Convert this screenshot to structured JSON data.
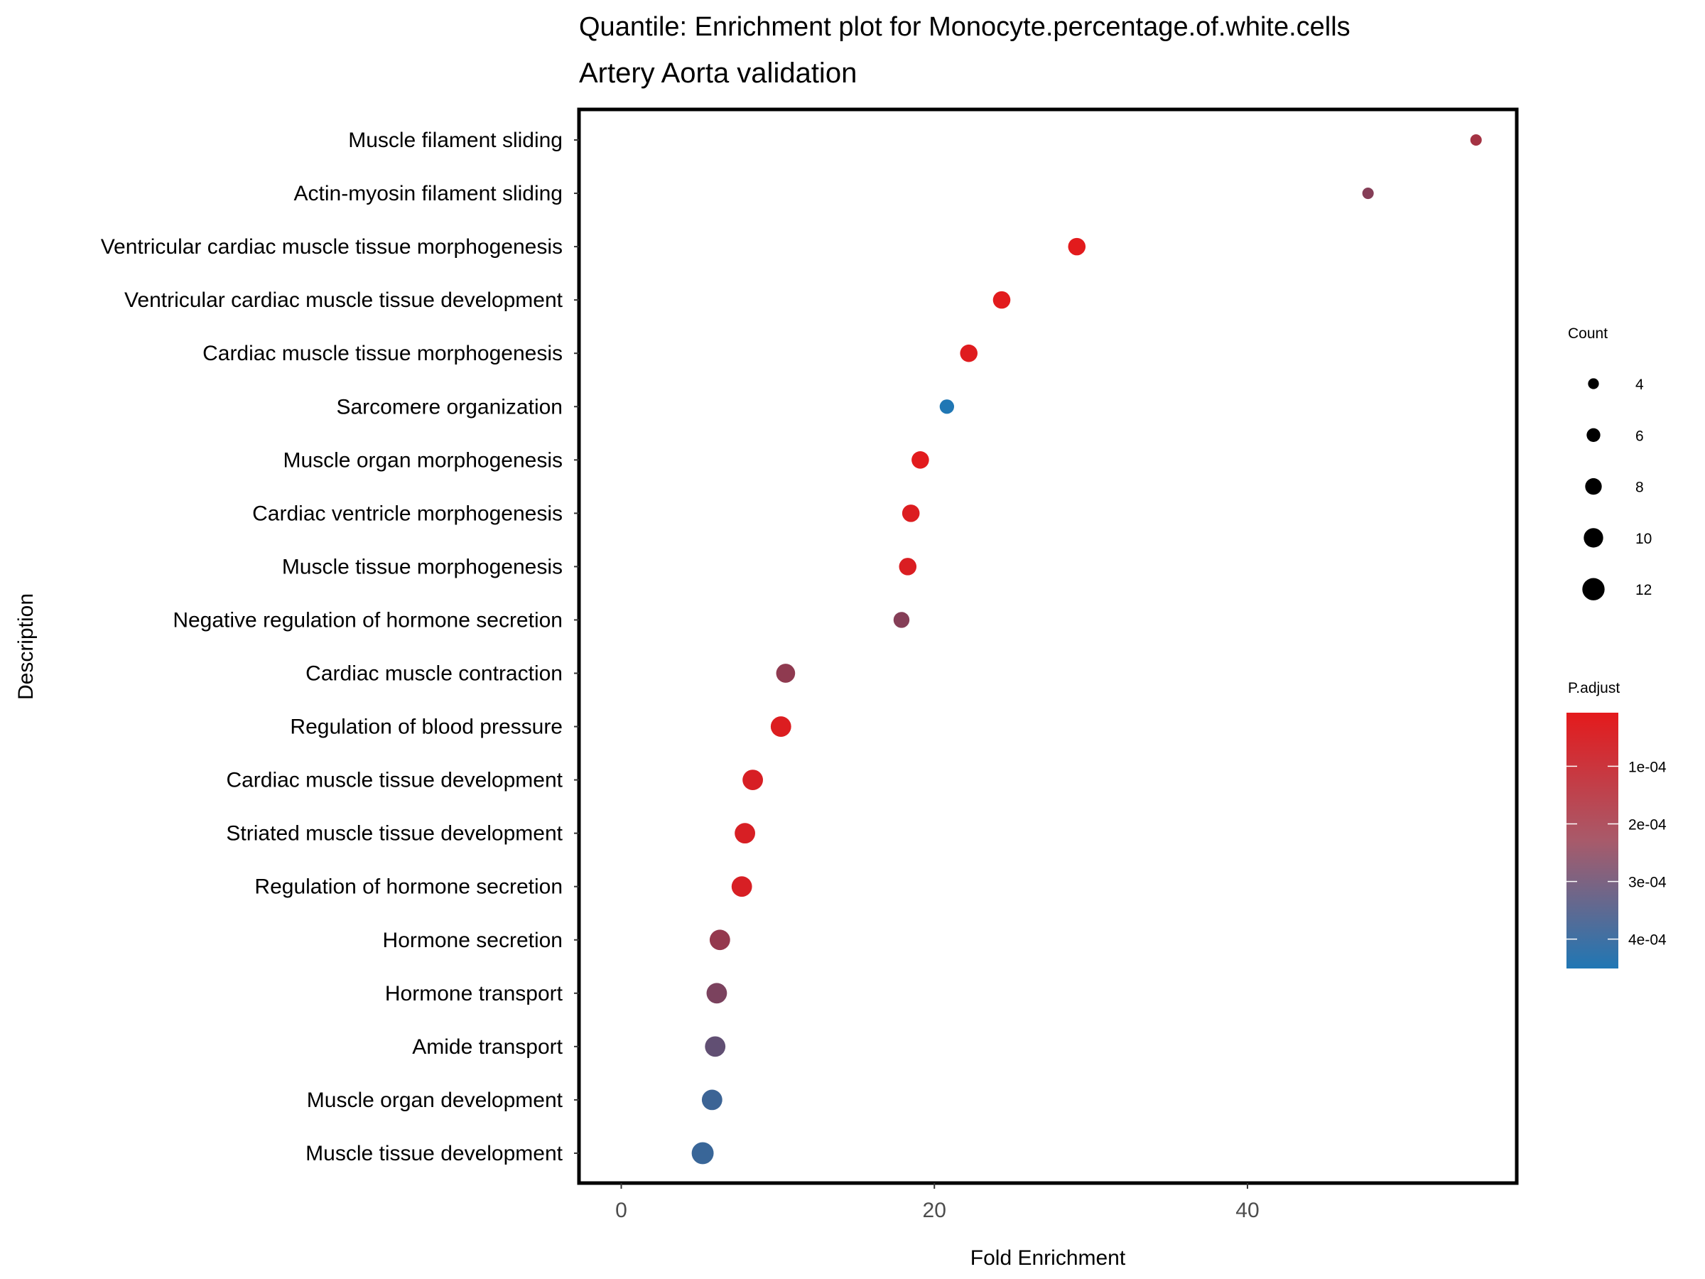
{
  "chart_data": {
    "type": "scatter",
    "title": "Quantile: Enrichment plot for Monocyte.percentage.of.white.cells",
    "subtitle": "Artery Aorta validation",
    "xlabel": "Fold Enrichment",
    "ylabel": "Description",
    "xlim": [
      -2.7,
      57.2
    ],
    "xticks": [
      0,
      20,
      40
    ],
    "grid": false,
    "categories": [
      "Muscle filament sliding",
      "Actin-myosin filament sliding",
      "Ventricular cardiac muscle tissue morphogenesis",
      "Ventricular cardiac muscle tissue development",
      "Cardiac muscle tissue morphogenesis",
      "Sarcomere organization",
      "Muscle organ morphogenesis",
      "Cardiac ventricle morphogenesis",
      "Muscle tissue morphogenesis",
      "Negative regulation of hormone secretion",
      "Cardiac muscle contraction",
      "Regulation of blood pressure",
      "Cardiac muscle tissue development",
      "Striated muscle tissue development",
      "Regulation of hormone secretion",
      "Hormone secretion",
      "Hormone transport",
      "Amide transport",
      "Muscle organ development",
      "Muscle tissue development"
    ],
    "fold_enrichment": [
      54.6,
      47.7,
      29.1,
      24.3,
      22.2,
      20.8,
      19.1,
      18.5,
      18.3,
      17.9,
      10.5,
      10.2,
      8.4,
      7.9,
      7.7,
      6.3,
      6.1,
      6.0,
      5.8,
      5.2
    ],
    "count": [
      4,
      4,
      8,
      8,
      8,
      6,
      8,
      8,
      8,
      7,
      9,
      10,
      10,
      10,
      10,
      10,
      10,
      10,
      10,
      11
    ],
    "p_adjust": [
      0.00012,
      0.00018,
      1e-05,
      1e-05,
      1.5e-05,
      0.00045,
      1e-05,
      2e-05,
      2.5e-05,
      0.00018,
      0.00016,
      2e-05,
      3e-05,
      3e-05,
      3e-05,
      0.00015,
      0.0002,
      0.00026,
      0.00036,
      0.00037
    ],
    "size_legend": {
      "title": "Count",
      "values": [
        4,
        6,
        8,
        10,
        12
      ],
      "labels": [
        "4",
        "6",
        "8",
        "10",
        "12"
      ]
    },
    "color_legend": {
      "title": "P.adjust",
      "range": [
        7e-06,
        0.000451
      ],
      "ticks": [
        0.0001,
        0.0002,
        0.0003,
        0.0004
      ],
      "tick_labels": [
        "1e-04",
        "2e-04",
        "3e-04",
        "4e-04"
      ],
      "low_color": "#e41a1c",
      "high_color": "#2077b4"
    },
    "legend_placement": "right"
  }
}
